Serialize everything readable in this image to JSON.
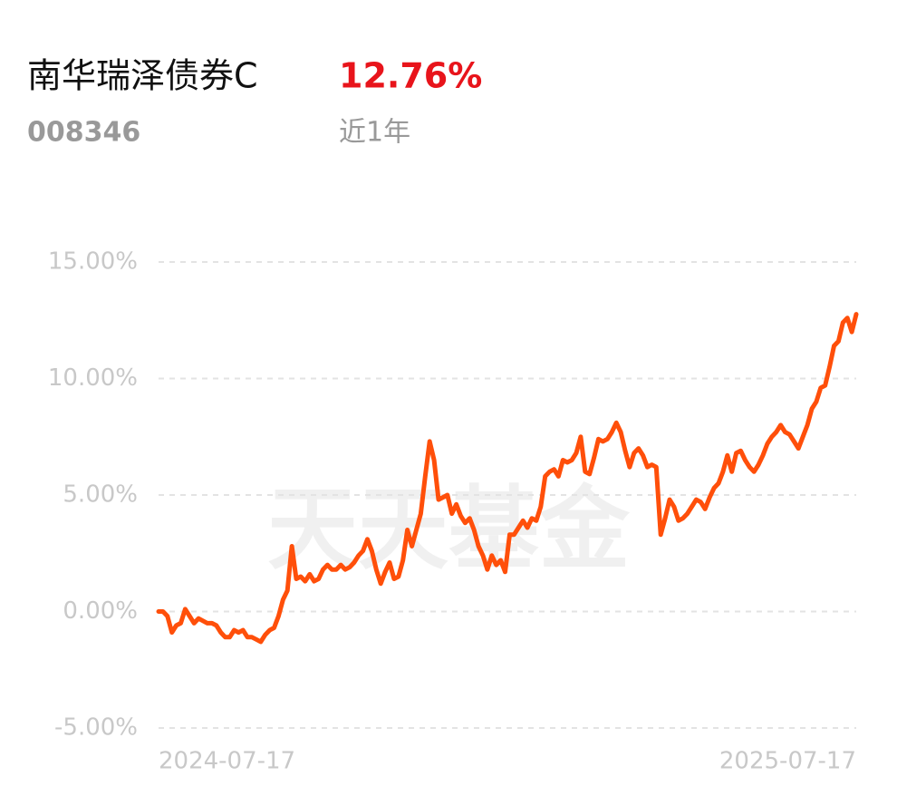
{
  "header": {
    "name": "南华瑞泽债券C",
    "return": "12.76%",
    "code": "008346",
    "period": "近1年"
  },
  "chart_data": {
    "type": "line",
    "color": "#ff4f0a",
    "watermark": "天天基金",
    "ylim": [
      -5,
      15
    ],
    "yticks": [
      {
        "value": 15,
        "label": "15.00%"
      },
      {
        "value": 10,
        "label": "10.00%"
      },
      {
        "value": 5,
        "label": "5.00%"
      },
      {
        "value": 0,
        "label": "0.00%"
      },
      {
        "value": -5,
        "label": "-5.00%"
      }
    ],
    "grid": true,
    "xlabels": [
      "2024-07-17",
      "2025-07-17"
    ],
    "values": [
      0.0,
      0.0,
      -0.2,
      -0.9,
      -0.6,
      -0.5,
      0.1,
      -0.2,
      -0.5,
      -0.3,
      -0.4,
      -0.5,
      -0.5,
      -0.6,
      -0.9,
      -1.1,
      -1.1,
      -0.8,
      -0.9,
      -0.8,
      -1.1,
      -1.1,
      -1.2,
      -1.3,
      -1.0,
      -0.8,
      -0.7,
      -0.2,
      0.5,
      0.9,
      2.8,
      1.4,
      1.5,
      1.3,
      1.6,
      1.3,
      1.4,
      1.8,
      2.0,
      1.8,
      1.8,
      2.0,
      1.8,
      1.9,
      2.1,
      2.4,
      2.6,
      3.1,
      2.6,
      1.8,
      1.2,
      1.7,
      2.1,
      1.4,
      1.5,
      2.2,
      3.5,
      2.8,
      3.5,
      4.2,
      5.8,
      7.3,
      6.5,
      4.8,
      4.9,
      5.0,
      4.2,
      4.6,
      4.1,
      3.8,
      4.0,
      3.5,
      2.8,
      2.4,
      1.8,
      2.4,
      2.0,
      2.2,
      1.7,
      3.3,
      3.3,
      3.6,
      3.9,
      3.6,
      4.0,
      3.9,
      4.5,
      5.8,
      6.0,
      6.1,
      5.8,
      6.5,
      6.4,
      6.5,
      6.8,
      7.5,
      6.0,
      5.9,
      6.6,
      7.4,
      7.3,
      7.4,
      7.7,
      8.1,
      7.7,
      6.9,
      6.2,
      6.8,
      7.0,
      6.7,
      6.2,
      6.3,
      6.2,
      3.3,
      4.0,
      4.8,
      4.5,
      3.9,
      4.0,
      4.2,
      4.5,
      4.8,
      4.7,
      4.4,
      4.9,
      5.3,
      5.5,
      6.0,
      6.7,
      6.0,
      6.8,
      6.9,
      6.5,
      6.2,
      6.0,
      6.3,
      6.7,
      7.2,
      7.5,
      7.7,
      8.0,
      7.7,
      7.6,
      7.3,
      7.0,
      7.5,
      8.0,
      8.7,
      9.0,
      9.6,
      9.7,
      10.5,
      11.4,
      11.6,
      12.4,
      12.6,
      12.0,
      12.76
    ]
  }
}
